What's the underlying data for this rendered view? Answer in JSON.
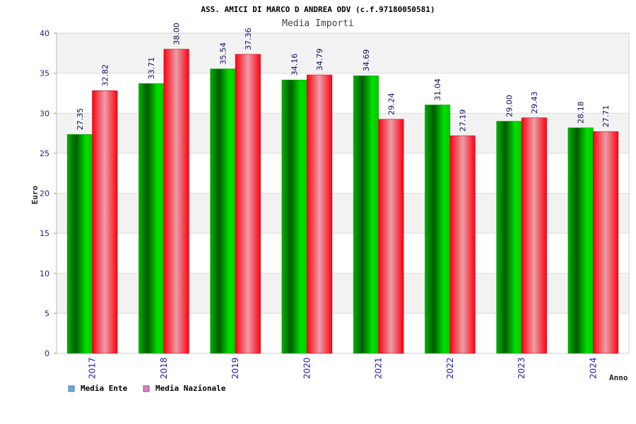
{
  "chart_data": {
    "type": "bar",
    "title": "ASS. AMICI DI MARCO D ANDREA ODV (c.f.97180050581)",
    "subtitle": "Media Importi",
    "xlabel": "Anno",
    "ylabel": "Euro",
    "ylim": [
      0,
      40
    ],
    "yticks": [
      0,
      5,
      10,
      15,
      20,
      25,
      30,
      35,
      40
    ],
    "categories": [
      "2017",
      "2018",
      "2019",
      "2020",
      "2021",
      "2022",
      "2023",
      "2024"
    ],
    "series": [
      {
        "name": "Media Ente",
        "values": [
          27.35,
          33.71,
          35.54,
          34.16,
          34.69,
          31.04,
          29.0,
          28.18
        ],
        "labels": [
          "27.35",
          "33.71",
          "35.54",
          "34.16",
          "34.69",
          "31.04",
          "29.00",
          "28.18"
        ],
        "color": "#00c000",
        "legend_color": "#6aa8e8"
      },
      {
        "name": "Media Nazionale",
        "values": [
          32.82,
          38.0,
          37.36,
          34.79,
          29.24,
          27.19,
          29.43,
          27.71
        ],
        "labels": [
          "32.82",
          "38.00",
          "37.36",
          "34.79",
          "29.24",
          "27.19",
          "29.43",
          "27.71"
        ],
        "color": "#ff1020",
        "legend_color": "#e080c0"
      }
    ],
    "grid": true,
    "legend_position": "bottom-left"
  }
}
